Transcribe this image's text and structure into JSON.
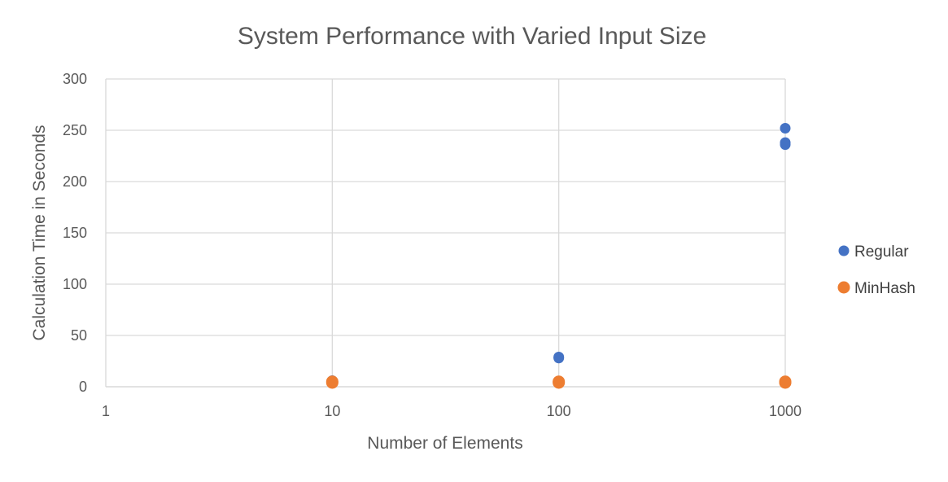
{
  "chart_data": {
    "type": "scatter",
    "title": "System Performance with Varied Input Size",
    "xlabel": "Number of Elements",
    "ylabel": "Calculation Time in Seconds",
    "x_scale": "log",
    "xlim": [
      1,
      1000
    ],
    "ylim": [
      0,
      300
    ],
    "x_ticks": [
      "1",
      "10",
      "100",
      "1000"
    ],
    "y_ticks": [
      "0",
      "50",
      "100",
      "150",
      "200",
      "250",
      "300"
    ],
    "grid": true,
    "legend_position": "right",
    "series": [
      {
        "name": "Regular",
        "color": "#4472C4",
        "points": [
          {
            "x": 10,
            "y": 6
          },
          {
            "x": 10,
            "y": 5
          },
          {
            "x": 100,
            "y": 29
          },
          {
            "x": 100,
            "y": 28
          },
          {
            "x": 1000,
            "y": 252
          },
          {
            "x": 1000,
            "y": 238
          },
          {
            "x": 1000,
            "y": 236
          }
        ]
      },
      {
        "name": "MinHash",
        "color": "#ED7D31",
        "points": [
          {
            "x": 10,
            "y": 4
          },
          {
            "x": 10,
            "y": 5
          },
          {
            "x": 100,
            "y": 4
          },
          {
            "x": 100,
            "y": 5
          },
          {
            "x": 1000,
            "y": 4
          },
          {
            "x": 1000,
            "y": 5
          }
        ]
      }
    ]
  }
}
